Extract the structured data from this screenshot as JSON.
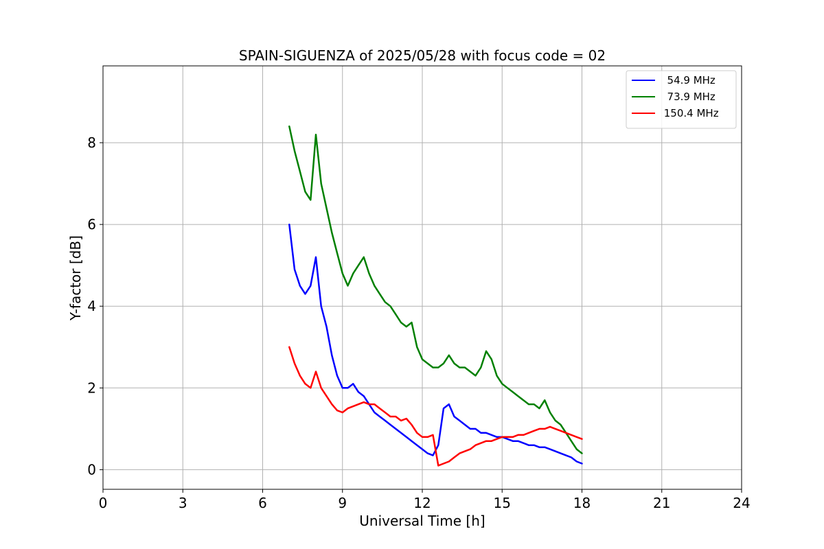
{
  "chart_data": {
    "type": "line",
    "title": "SPAIN-SIGUENZA of 2025/05/28 with focus code = 02",
    "xlabel": "Universal Time [h]",
    "ylabel": "Y-factor [dB]",
    "xlim": [
      0,
      24
    ],
    "ylim": [
      -0.48,
      9.88
    ],
    "xticks": [
      0,
      3,
      6,
      9,
      12,
      15,
      18,
      21,
      24
    ],
    "yticks": [
      0,
      2,
      4,
      6,
      8
    ],
    "grid": true,
    "legend_position": "top-right",
    "series": [
      {
        "name": "  54.9 MHz",
        "color": "#0000ff",
        "x": [
          7.0,
          7.2,
          7.4,
          7.6,
          7.8,
          8.0,
          8.2,
          8.4,
          8.6,
          8.8,
          9.0,
          9.2,
          9.4,
          9.6,
          9.8,
          10.0,
          10.2,
          10.4,
          10.6,
          10.8,
          11.0,
          11.2,
          11.4,
          11.6,
          11.8,
          12.0,
          12.2,
          12.4,
          12.6,
          12.8,
          13.0,
          13.2,
          13.4,
          13.6,
          13.8,
          14.0,
          14.2,
          14.4,
          14.6,
          14.8,
          15.0,
          15.2,
          15.4,
          15.6,
          15.8,
          16.0,
          16.2,
          16.4,
          16.6,
          16.8,
          17.0,
          17.2,
          17.4,
          17.6,
          17.8,
          18.0
        ],
        "y": [
          6.0,
          4.9,
          4.5,
          4.3,
          4.5,
          5.2,
          4.0,
          3.5,
          2.8,
          2.3,
          2.0,
          2.0,
          2.1,
          1.9,
          1.8,
          1.6,
          1.4,
          1.3,
          1.2,
          1.1,
          1.0,
          0.9,
          0.8,
          0.7,
          0.6,
          0.5,
          0.4,
          0.35,
          0.6,
          1.5,
          1.6,
          1.3,
          1.2,
          1.1,
          1.0,
          1.0,
          0.9,
          0.9,
          0.85,
          0.8,
          0.8,
          0.75,
          0.7,
          0.7,
          0.65,
          0.6,
          0.6,
          0.55,
          0.55,
          0.5,
          0.45,
          0.4,
          0.35,
          0.3,
          0.2,
          0.15
        ]
      },
      {
        "name": "  73.9 MHz",
        "color": "#008000",
        "x": [
          7.0,
          7.2,
          7.4,
          7.6,
          7.8,
          8.0,
          8.2,
          8.4,
          8.6,
          8.8,
          9.0,
          9.2,
          9.4,
          9.6,
          9.8,
          10.0,
          10.2,
          10.4,
          10.6,
          10.8,
          11.0,
          11.2,
          11.4,
          11.6,
          11.8,
          12.0,
          12.2,
          12.4,
          12.6,
          12.8,
          13.0,
          13.2,
          13.4,
          13.6,
          13.8,
          14.0,
          14.2,
          14.4,
          14.6,
          14.8,
          15.0,
          15.2,
          15.4,
          15.6,
          15.8,
          16.0,
          16.2,
          16.4,
          16.6,
          16.8,
          17.0,
          17.2,
          17.4,
          17.6,
          17.8,
          18.0
        ],
        "y": [
          8.4,
          7.8,
          7.3,
          6.8,
          6.6,
          8.2,
          7.0,
          6.4,
          5.8,
          5.3,
          4.8,
          4.5,
          4.8,
          5.0,
          5.2,
          4.8,
          4.5,
          4.3,
          4.1,
          4.0,
          3.8,
          3.6,
          3.5,
          3.6,
          3.0,
          2.7,
          2.6,
          2.5,
          2.5,
          2.6,
          2.8,
          2.6,
          2.5,
          2.5,
          2.4,
          2.3,
          2.5,
          2.9,
          2.7,
          2.3,
          2.1,
          2.0,
          1.9,
          1.8,
          1.7,
          1.6,
          1.6,
          1.5,
          1.7,
          1.4,
          1.2,
          1.1,
          0.9,
          0.7,
          0.5,
          0.4
        ]
      },
      {
        "name": " 150.4 MHz",
        "color": "#ff0000",
        "x": [
          7.0,
          7.2,
          7.4,
          7.6,
          7.8,
          8.0,
          8.2,
          8.4,
          8.6,
          8.8,
          9.0,
          9.2,
          9.4,
          9.6,
          9.8,
          10.0,
          10.2,
          10.4,
          10.6,
          10.8,
          11.0,
          11.2,
          11.4,
          11.6,
          11.8,
          12.0,
          12.2,
          12.4,
          12.6,
          12.8,
          13.0,
          13.2,
          13.4,
          13.6,
          13.8,
          14.0,
          14.2,
          14.4,
          14.6,
          14.8,
          15.0,
          15.2,
          15.4,
          15.6,
          15.8,
          16.0,
          16.2,
          16.4,
          16.6,
          16.8,
          17.0,
          17.2,
          17.4,
          17.6,
          17.8,
          18.0
        ],
        "y": [
          3.0,
          2.6,
          2.3,
          2.1,
          2.0,
          2.4,
          2.0,
          1.8,
          1.6,
          1.45,
          1.4,
          1.5,
          1.55,
          1.6,
          1.65,
          1.6,
          1.6,
          1.5,
          1.4,
          1.3,
          1.3,
          1.2,
          1.25,
          1.1,
          0.9,
          0.8,
          0.8,
          0.85,
          0.1,
          0.15,
          0.2,
          0.3,
          0.4,
          0.45,
          0.5,
          0.6,
          0.65,
          0.7,
          0.7,
          0.75,
          0.8,
          0.8,
          0.8,
          0.85,
          0.85,
          0.9,
          0.95,
          1.0,
          1.0,
          1.05,
          1.0,
          0.95,
          0.9,
          0.85,
          0.8,
          0.75
        ]
      }
    ]
  }
}
